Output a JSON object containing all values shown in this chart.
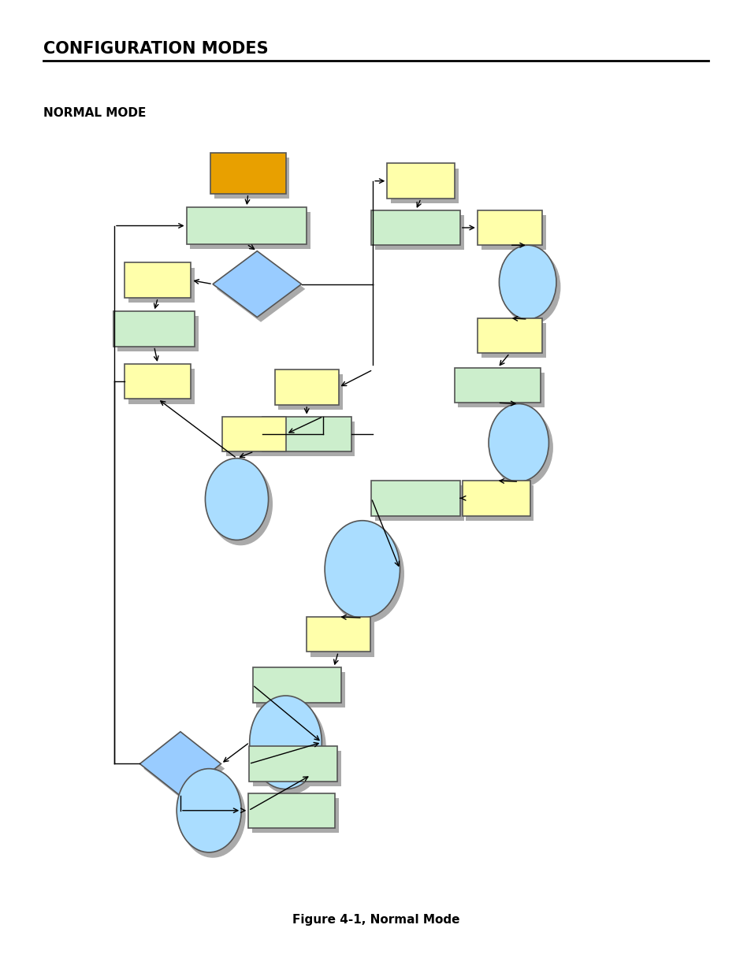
{
  "title": "CONFIGURATION MODES",
  "subtitle": "NORMAL MODE",
  "caption": "Figure 4-1, Normal Mode",
  "bg_color": "#ffffff",
  "colors": {
    "orange": "#E8A000",
    "green_box": "#CCEECC",
    "yellow_box": "#FFFFAA",
    "blue_diamond": "#99CCFF",
    "blue_circle": "#AADDFF",
    "shadow": "#AAAAAA",
    "border": "#555555"
  }
}
